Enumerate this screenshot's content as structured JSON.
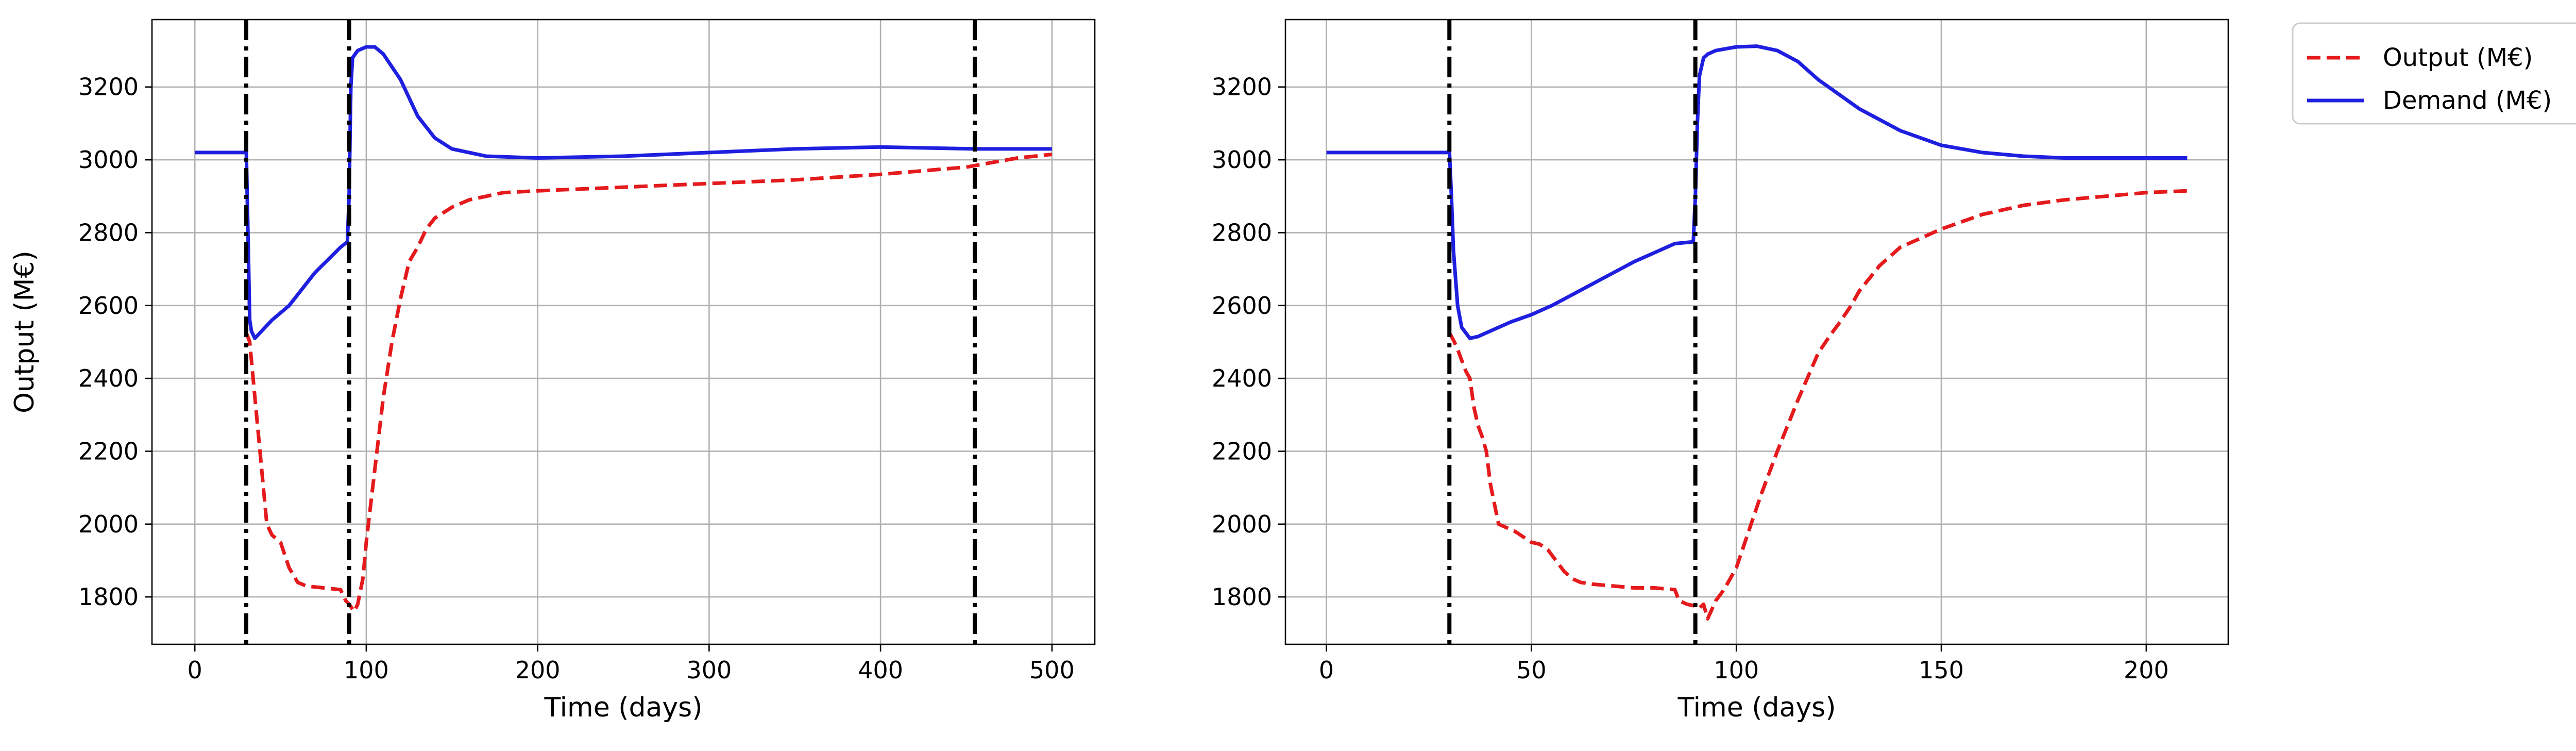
{
  "chart_data": [
    {
      "type": "line",
      "xlabel": "Time (days)",
      "ylabel": "Output (M€)",
      "xlim": [
        -25,
        525
      ],
      "ylim": [
        1670,
        3385
      ],
      "xticks": [
        0,
        100,
        200,
        300,
        400,
        500
      ],
      "yticks": [
        1800,
        2000,
        2200,
        2400,
        2600,
        2800,
        3000,
        3200
      ],
      "grid": true,
      "vlines": [
        30,
        90,
        455
      ],
      "series": [
        {
          "name": "Output (M€)",
          "color": "#e41a1c",
          "style": "dashed",
          "x": [
            30,
            32,
            35,
            38,
            42,
            45,
            50,
            55,
            60,
            65,
            75,
            85,
            88,
            90,
            93,
            95,
            98,
            100,
            105,
            110,
            115,
            120,
            125,
            130,
            135,
            140,
            150,
            160,
            170,
            180,
            200,
            250,
            300,
            350,
            400,
            450,
            480,
            500
          ],
          "y": [
            2525,
            2500,
            2350,
            2200,
            2000,
            1970,
            1950,
            1880,
            1840,
            1830,
            1825,
            1820,
            1790,
            1780,
            1760,
            1780,
            1850,
            1950,
            2150,
            2350,
            2500,
            2620,
            2720,
            2760,
            2810,
            2840,
            2870,
            2890,
            2900,
            2910,
            2915,
            2925,
            2935,
            2945,
            2960,
            2980,
            3005,
            3015
          ]
        },
        {
          "name": "Demand (M€)",
          "color": "#1f1fe0",
          "style": "solid",
          "x": [
            0,
            29,
            30,
            31,
            32,
            33,
            35,
            38,
            45,
            55,
            70,
            85,
            89,
            90,
            91,
            92,
            95,
            100,
            105,
            110,
            120,
            130,
            140,
            150,
            170,
            200,
            250,
            300,
            350,
            400,
            455,
            500
          ],
          "y": [
            3020,
            3020,
            3025,
            2800,
            2560,
            2530,
            2510,
            2525,
            2560,
            2600,
            2690,
            2760,
            2775,
            2900,
            3200,
            3280,
            3300,
            3310,
            3310,
            3290,
            3220,
            3120,
            3060,
            3030,
            3010,
            3005,
            3010,
            3020,
            3030,
            3035,
            3030,
            3030
          ]
        }
      ]
    },
    {
      "type": "line",
      "xlabel": "Time (days)",
      "ylabel": "",
      "xlim": [
        -10,
        220
      ],
      "ylim": [
        1670,
        3385
      ],
      "xticks": [
        0,
        50,
        100,
        150,
        200
      ],
      "yticks": [
        1800,
        2000,
        2200,
        2400,
        2600,
        2800,
        3000,
        3200
      ],
      "grid": true,
      "vlines": [
        30,
        90
      ],
      "series": [
        {
          "name": "Output (M€)",
          "color": "#e41a1c",
          "style": "dashed",
          "x": [
            30,
            31,
            32,
            33,
            34,
            35,
            36,
            37,
            38,
            39,
            40,
            42,
            44,
            46,
            48,
            50,
            52,
            54,
            56,
            58,
            60,
            62,
            65,
            70,
            75,
            80,
            85,
            86,
            88,
            90,
            91,
            92,
            93,
            95,
            97,
            100,
            103,
            106,
            110,
            115,
            120,
            123,
            125,
            128,
            130,
            135,
            140,
            150,
            160,
            170,
            180,
            190,
            200,
            210
          ],
          "y": [
            2525,
            2505,
            2480,
            2450,
            2420,
            2400,
            2320,
            2270,
            2240,
            2200,
            2110,
            2000,
            1990,
            1980,
            1965,
            1950,
            1945,
            1930,
            1900,
            1870,
            1850,
            1840,
            1835,
            1830,
            1825,
            1825,
            1820,
            1790,
            1780,
            1775,
            1770,
            1780,
            1740,
            1790,
            1820,
            1880,
            1980,
            2080,
            2200,
            2340,
            2470,
            2520,
            2550,
            2600,
            2640,
            2710,
            2760,
            2810,
            2850,
            2875,
            2890,
            2900,
            2910,
            2915
          ]
        },
        {
          "name": "Demand (M€)",
          "color": "#1f1fe0",
          "style": "solid",
          "x": [
            0,
            29.5,
            30,
            30.5,
            31,
            32,
            33,
            35,
            37,
            40,
            45,
            50,
            55,
            60,
            65,
            70,
            75,
            80,
            85,
            89.5,
            90,
            90.5,
            91,
            92,
            93,
            95,
            100,
            105,
            110,
            115,
            120,
            130,
            140,
            150,
            160,
            170,
            180,
            190,
            200,
            210
          ],
          "y": [
            3020,
            3020,
            3025,
            2900,
            2750,
            2600,
            2540,
            2510,
            2515,
            2530,
            2555,
            2575,
            2600,
            2630,
            2660,
            2690,
            2720,
            2745,
            2770,
            2775,
            2900,
            3100,
            3230,
            3280,
            3290,
            3300,
            3310,
            3312,
            3300,
            3270,
            3220,
            3140,
            3080,
            3040,
            3020,
            3010,
            3005,
            3005,
            3005,
            3005
          ]
        }
      ]
    }
  ],
  "legend": {
    "placement": "outside-top-right",
    "items": [
      {
        "label": "Output (M€)",
        "color": "#e41a1c",
        "style": "dashed"
      },
      {
        "label": "Demand (M€)",
        "color": "#1f1fe0",
        "style": "solid"
      }
    ]
  }
}
